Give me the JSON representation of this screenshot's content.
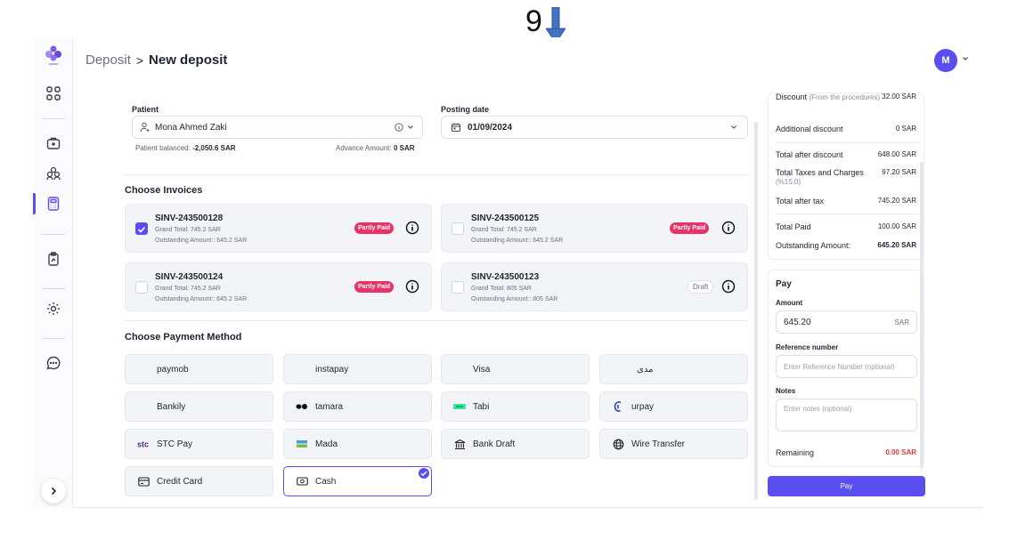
{
  "annotation": {
    "number": "9"
  },
  "header": {
    "breadcrumb_parent": "Deposit",
    "breadcrumb_sep": ">",
    "breadcrumb_current": "New deposit",
    "avatar_initial": "M"
  },
  "form": {
    "patient_label": "Patient",
    "patient_value": "Mona Ahmed Zaki",
    "patient_balanced_label": "Patient balanced:",
    "patient_balanced_value": "-2,050.6 SAR",
    "advance_amount_label": "Advance Amount:",
    "advance_amount_value": "0 SAR",
    "posting_date_label": "Posting date",
    "posting_date_value": "01/09/2024"
  },
  "invoices": {
    "title": "Choose Invoices",
    "items": [
      {
        "code": "SINV-243500128",
        "grand_total": "Grand Total: 745.2 SAR",
        "outstanding": "Outstanding Amount:: 645.2 SAR",
        "status": "Partly Paid",
        "checked": true
      },
      {
        "code": "SINV-243500125",
        "grand_total": "Grand Total: 745.2 SAR",
        "outstanding": "Outstanding Amount:: 645.2 SAR",
        "status": "Partly Paid",
        "checked": false
      },
      {
        "code": "SINV-243500124",
        "grand_total": "Grand Total: 745.2 SAR",
        "outstanding": "Outstanding Amount:: 645.2 SAR",
        "status": "Partly Paid",
        "checked": false
      },
      {
        "code": "SINV-243500123",
        "grand_total": "Grand Total: 805 SAR",
        "outstanding": "Outstanding Amount:: 805 SAR",
        "status": "Draft",
        "checked": false
      }
    ]
  },
  "payment_methods": {
    "title": "Choose Payment Method",
    "items": [
      {
        "label": "paymob",
        "icon": "none"
      },
      {
        "label": "instapay",
        "icon": "none"
      },
      {
        "label": "Visa",
        "icon": "none"
      },
      {
        "label": "مدى",
        "icon": "none"
      },
      {
        "label": "Bankily",
        "icon": "none"
      },
      {
        "label": "tamara",
        "icon": "tamara-logo-icon"
      },
      {
        "label": "Tabi",
        "icon": "tabby-logo-icon"
      },
      {
        "label": "urpay",
        "icon": "urpay-logo-icon"
      },
      {
        "label": "STC Pay",
        "icon": "stc-logo-icon"
      },
      {
        "label": "Mada",
        "icon": "mada-logo-icon"
      },
      {
        "label": "Bank Draft",
        "icon": "bank-icon"
      },
      {
        "label": "Wire Transfer",
        "icon": "globe-icon"
      },
      {
        "label": "Credit Card",
        "icon": "credit-card-icon"
      },
      {
        "label": "Cash",
        "icon": "cash-icon",
        "selected": true
      }
    ]
  },
  "summary": {
    "discount_label": "Discount",
    "discount_sub": "(From the procedures)",
    "discount_value": "32.00 SAR",
    "additional_discount_label": "Additional discount",
    "additional_discount_value": "0 SAR",
    "total_after_discount_label": "Total after discount",
    "total_after_discount_value": "648.00 SAR",
    "taxes_label": "Total Taxes and Charges",
    "taxes_sub": "(%15.0)",
    "taxes_value": "97.20 SAR",
    "total_after_tax_label": "Total after tax",
    "total_after_tax_value": "745.20 SAR",
    "total_paid_label": "Total Paid",
    "total_paid_value": "100.00 SAR",
    "outstanding_label": "Outstanding Amount:",
    "outstanding_value": "645.20 SAR"
  },
  "pay": {
    "title": "Pay",
    "amount_label": "Amount",
    "amount_value": "645.20",
    "amount_currency": "SAR",
    "reference_label": "Reference number",
    "reference_placeholder": "Enter Reference Number (optional)",
    "notes_label": "Notes",
    "notes_placeholder": "Enter notes (optional)",
    "remaining_label": "Remaining",
    "remaining_value": "0.00 SAR",
    "button_label": "Pay"
  },
  "colors": {
    "accent": "#5b4ef0",
    "partly_paid": "#e8336a",
    "remaining": "#e53935"
  }
}
